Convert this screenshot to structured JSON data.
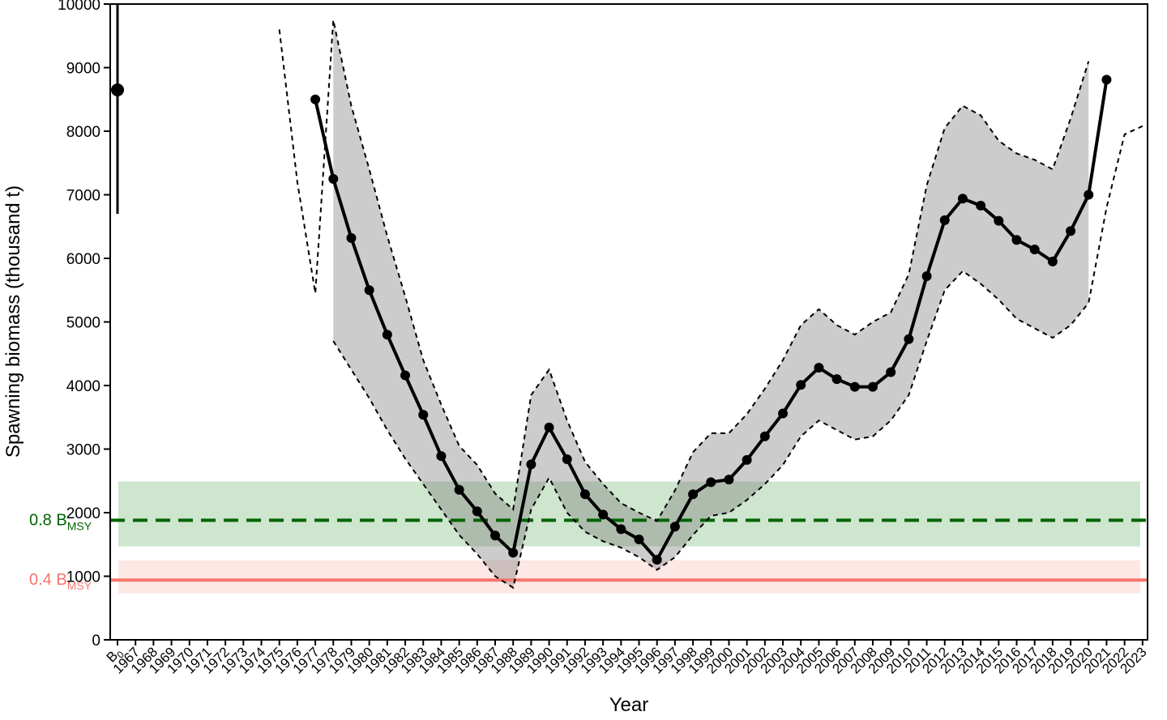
{
  "chart_data": {
    "type": "line",
    "xlabel": "Year",
    "ylabel": "Spawning biomass (thousand t)",
    "ylim": [
      0,
      10000
    ],
    "yticks": [
      0,
      1000,
      2000,
      3000,
      4000,
      5000,
      6000,
      7000,
      8000,
      9000,
      10000
    ],
    "x_categories": [
      "B0",
      "1967",
      "1968",
      "1969",
      "1970",
      "1971",
      "1972",
      "1973",
      "1974",
      "1975",
      "1976",
      "1977",
      "1978",
      "1979",
      "1980",
      "1981",
      "1982",
      "1983",
      "1984",
      "1985",
      "1986",
      "1987",
      "1988",
      "1989",
      "1990",
      "1991",
      "1992",
      "1993",
      "1994",
      "1995",
      "1996",
      "1997",
      "1998",
      "1999",
      "2000",
      "2001",
      "2002",
      "2003",
      "2004",
      "2005",
      "2006",
      "2007",
      "2008",
      "2009",
      "2010",
      "2011",
      "2012",
      "2013",
      "2014",
      "2015",
      "2016",
      "2017",
      "2018",
      "2019",
      "2020",
      "2021",
      "2022",
      "2023"
    ],
    "b0": {
      "x": "B0",
      "value": 8650,
      "low": 6700,
      "high": 10000
    },
    "series": [
      {
        "x": [
          "1977",
          "1978",
          "1979",
          "1980",
          "1981",
          "1982",
          "1983",
          "1984",
          "1985",
          "1986",
          "1987",
          "1988",
          "1989",
          "1990",
          "1991",
          "1992",
          "1993",
          "1994",
          "1995",
          "1996",
          "1997",
          "1998",
          "1999",
          "2000",
          "2001",
          "2002",
          "2003",
          "2004",
          "2005",
          "2006",
          "2007",
          "2008",
          "2009",
          "2010",
          "2011",
          "2012",
          "2013",
          "2014",
          "2015",
          "2016",
          "2017",
          "2018",
          "2019",
          "2020",
          "2021"
        ],
        "values": [
          8500,
          7250,
          6320,
          5500,
          4800,
          4160,
          3540,
          2890,
          2360,
          2020,
          1640,
          1370,
          2760,
          3340,
          2840,
          2290,
          1970,
          1740,
          1580,
          1260,
          1780,
          2290,
          2480,
          2520,
          2830,
          3200,
          3560,
          4010,
          4280,
          4100,
          3980,
          3980,
          4210,
          4730,
          5720,
          6600,
          6940,
          6830,
          6590,
          6290,
          6140,
          5950,
          6430,
          7000,
          8810
        ]
      }
    ],
    "ci_band": {
      "x": [
        "1978",
        "1979",
        "1980",
        "1981",
        "1982",
        "1983",
        "1984",
        "1985",
        "1986",
        "1987",
        "1988",
        "1989",
        "1990",
        "1991",
        "1992",
        "1993",
        "1994",
        "1995",
        "1996",
        "1997",
        "1998",
        "1999",
        "2000",
        "2001",
        "2002",
        "2003",
        "2004",
        "2005",
        "2006",
        "2007",
        "2008",
        "2009",
        "2010",
        "2011",
        "2012",
        "2013",
        "2014",
        "2015",
        "2016",
        "2017",
        "2018",
        "2019",
        "2020"
      ],
      "upper": [
        9750,
        8400,
        7400,
        6350,
        5400,
        4400,
        3700,
        3050,
        2750,
        2300,
        2050,
        3850,
        4250,
        3450,
        2800,
        2450,
        2150,
        2000,
        1870,
        2350,
        2950,
        3250,
        3250,
        3550,
        3950,
        4400,
        4950,
        5200,
        4950,
        4800,
        5000,
        5150,
        5750,
        7150,
        8050,
        8400,
        8250,
        7850,
        7650,
        7550,
        7400,
        8200,
        9100
      ],
      "lower": [
        4700,
        4250,
        3800,
        3300,
        2850,
        2450,
        2050,
        1650,
        1350,
        1000,
        820,
        2050,
        2550,
        2000,
        1700,
        1550,
        1450,
        1300,
        1100,
        1300,
        1650,
        1950,
        2000,
        2200,
        2450,
        2750,
        3200,
        3450,
        3300,
        3150,
        3200,
        3450,
        3850,
        4700,
        5500,
        5800,
        5600,
        5350,
        5050,
        4900,
        4750,
        4950,
        5300
      ],
      "dashed_upper_extra_left": [
        {
          "x": "1975",
          "y": 9600
        },
        {
          "x": "1976",
          "y": 7200
        },
        {
          "x": "1977",
          "y": 5450
        }
      ],
      "dashed_lower_right": [
        {
          "x": "2020",
          "y": 5300
        },
        {
          "x": "2021",
          "y": 6800
        },
        {
          "x": "2022",
          "y": 7950
        },
        {
          "x": "2023",
          "y": 8080
        }
      ]
    },
    "reference_lines": [
      {
        "label_main": "0.8 B",
        "label_sub": "MSY",
        "value": 1880,
        "band": [
          1470,
          2490
        ],
        "color": "#006400",
        "band_color": "#a5cfa5",
        "style": "dashed"
      },
      {
        "label_main": "0.4 B",
        "label_sub": "MSY",
        "value": 940,
        "band": [
          730,
          1250
        ],
        "color": "#f8766d",
        "band_color": "#fcd5d1",
        "style": "solid"
      }
    ],
    "grid": false
  }
}
